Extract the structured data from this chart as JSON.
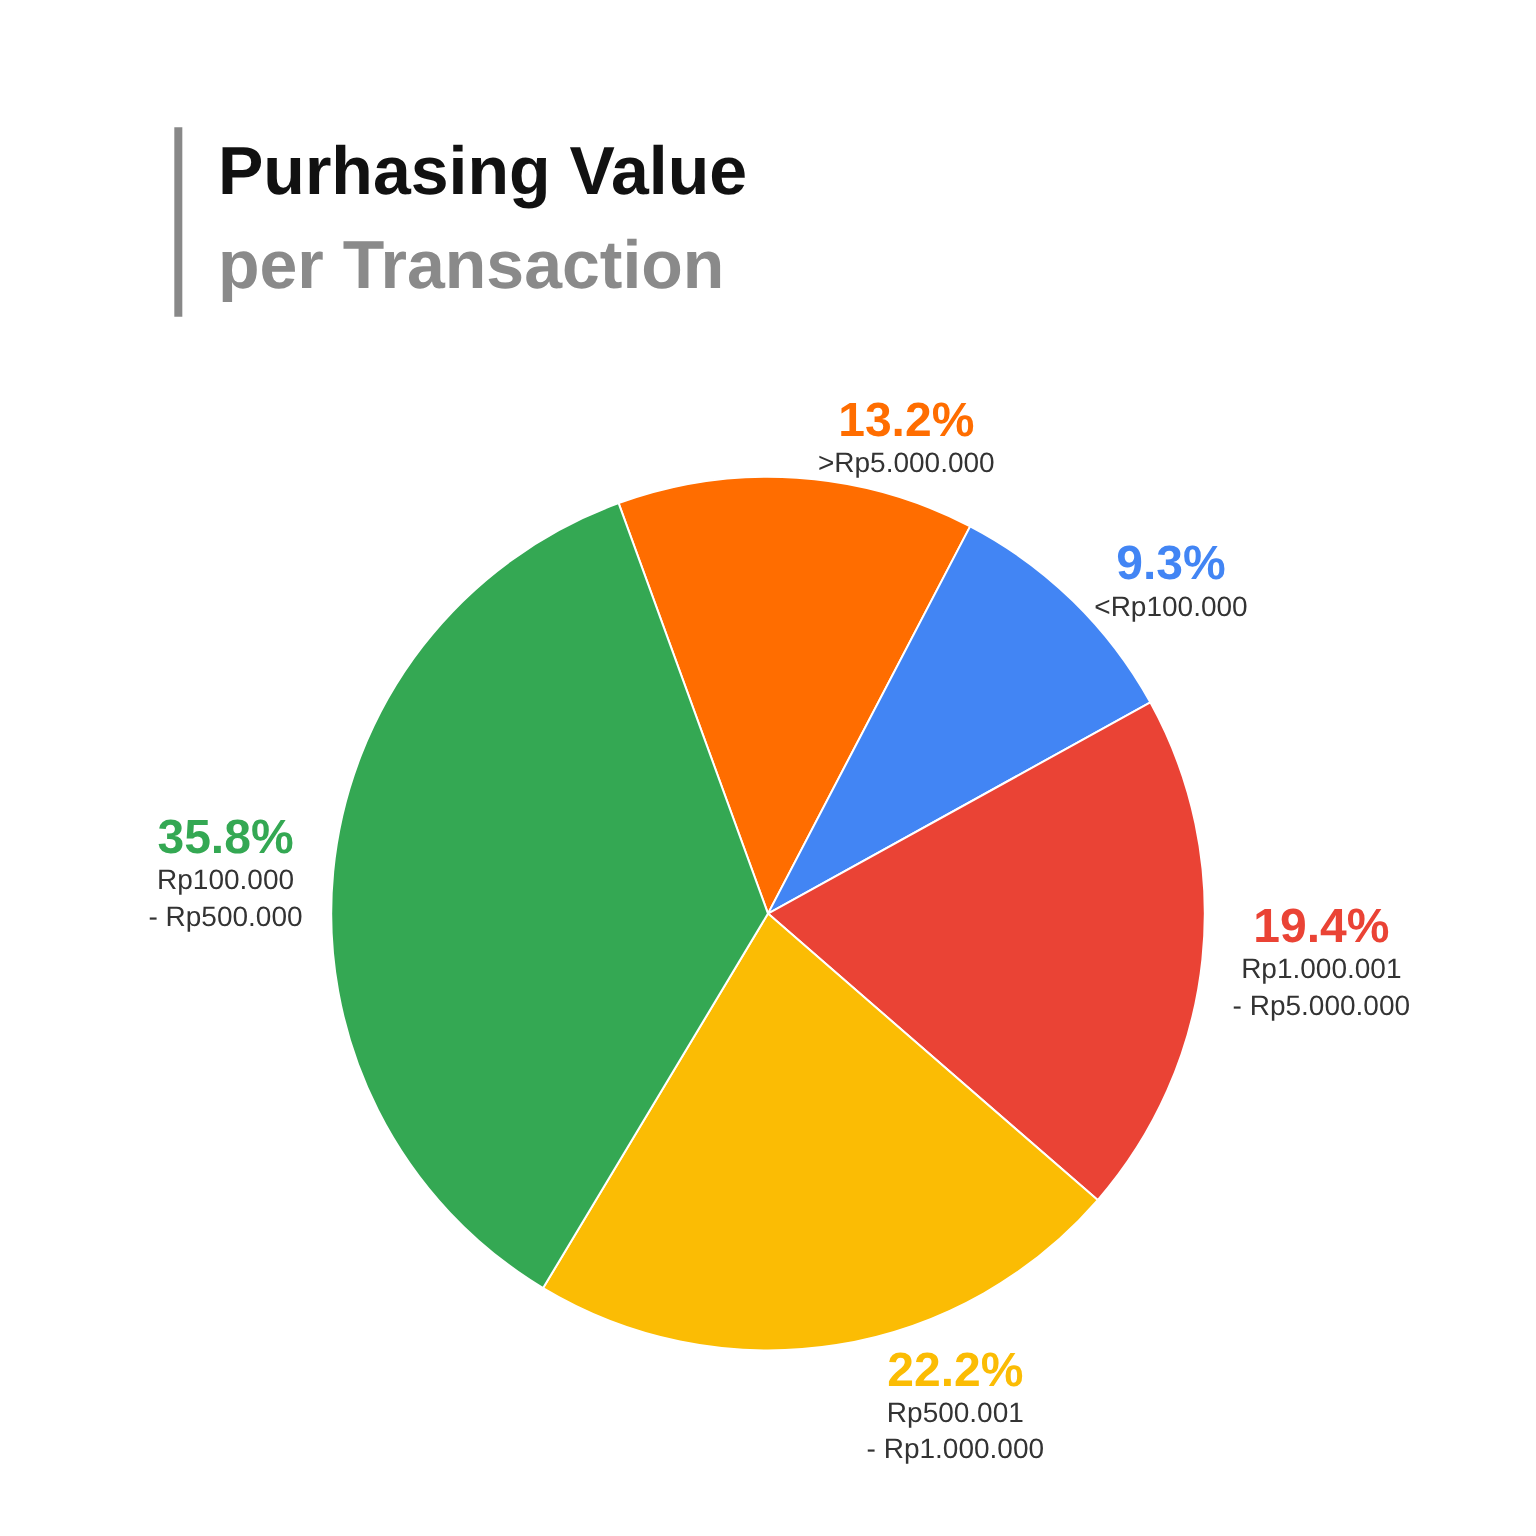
{
  "chart_data": {
    "type": "pie",
    "title": "Purhasing Value",
    "subtitle": "per Transaction",
    "categories": [
      ">Rp5.000.000",
      "<Rp100.000",
      "Rp1.000.001\n- Rp5.000.000",
      "Rp500.001\n- Rp1.000.000",
      "Rp100.000\n- Rp500.000"
    ],
    "values": [
      13.2,
      9.3,
      19.4,
      22.2,
      35.8
    ],
    "colors": [
      "#ff6d00",
      "#4285f4",
      "#ea4335",
      "#fbbc04",
      "#34a853"
    ],
    "value_labels": [
      "13.2%",
      "9.3%",
      "19.4%",
      "22.2%",
      "35.8%"
    ],
    "legend": false
  }
}
